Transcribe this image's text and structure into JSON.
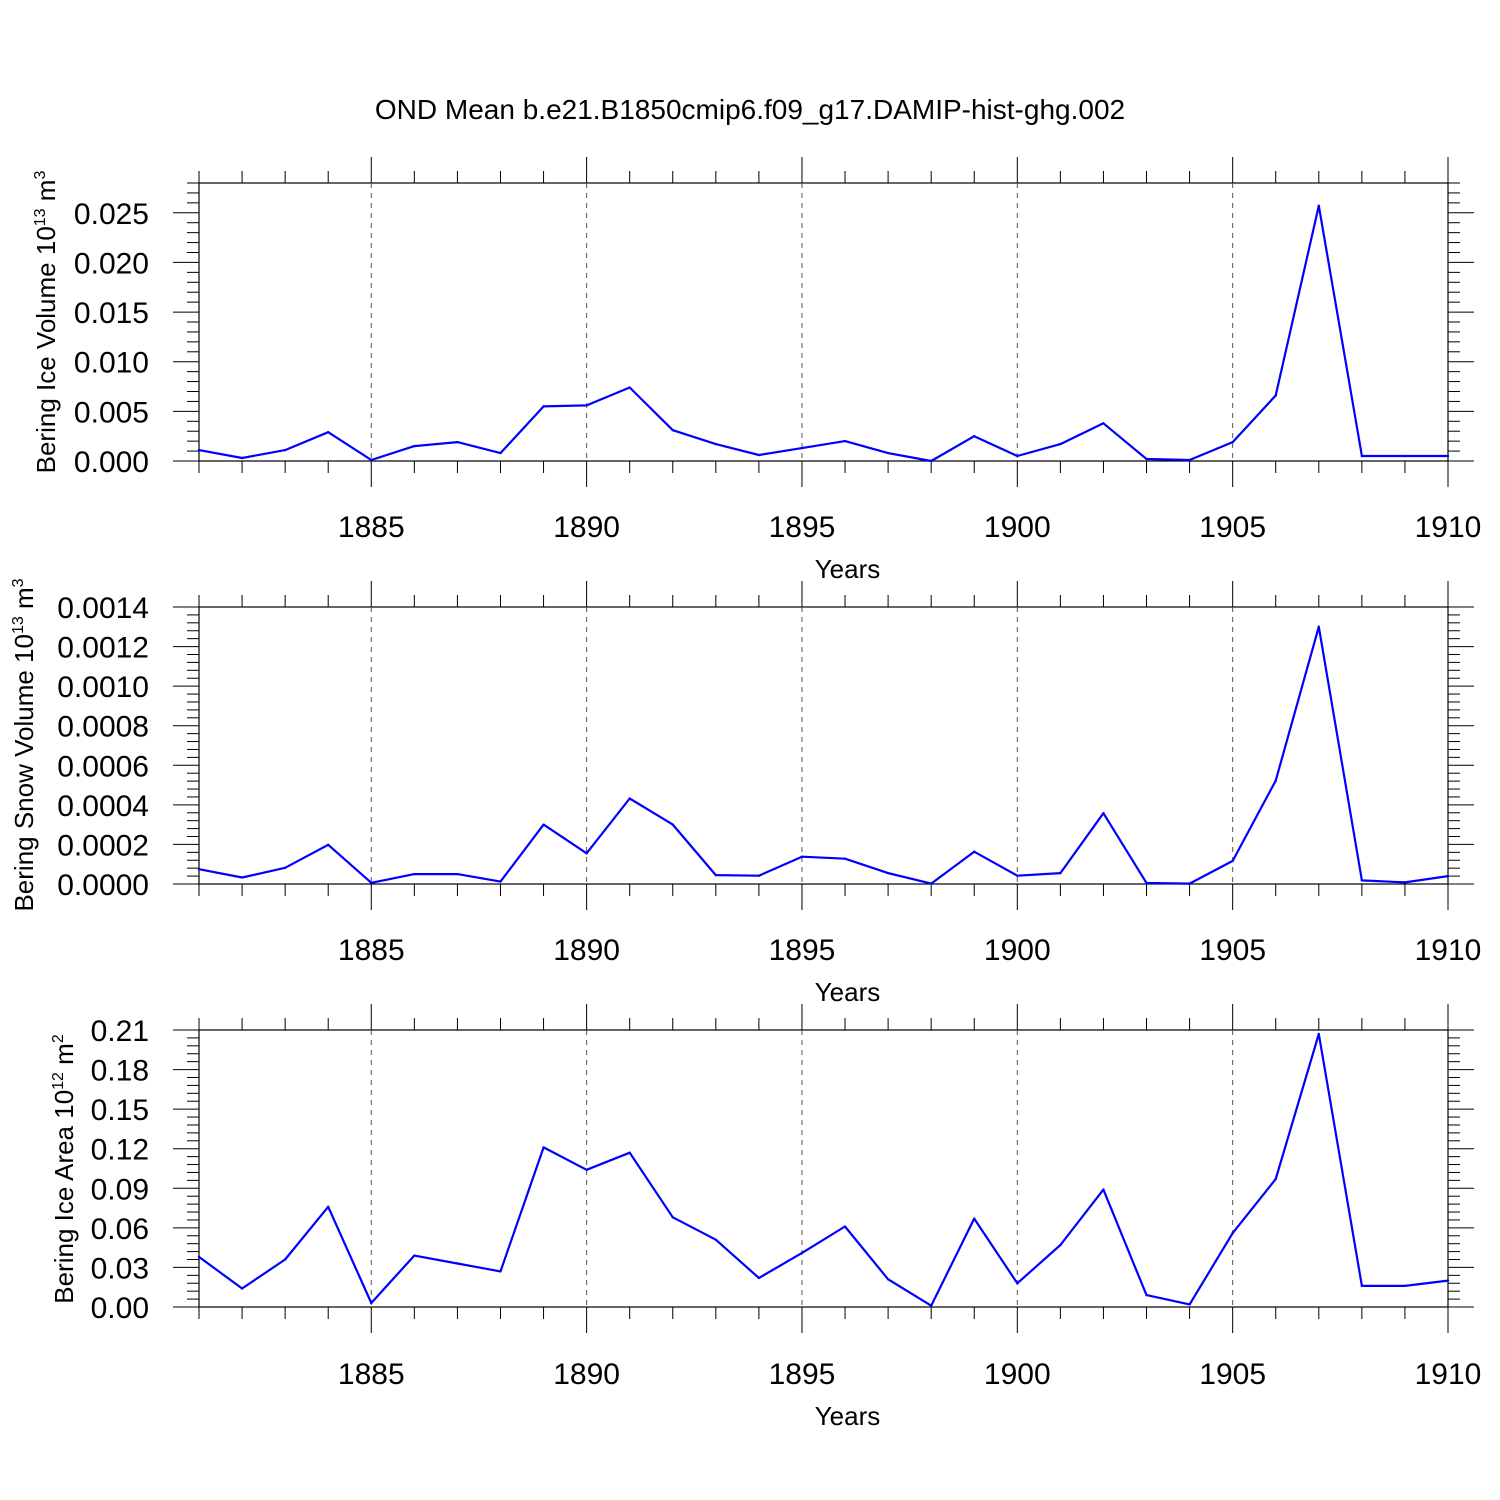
{
  "title": "OND Mean b.e21.B1850cmip6.f09_g17.DAMIP-hist-ghg.002",
  "line_color": "#0000ff",
  "chart_data": [
    {
      "type": "line",
      "ylabel": "Bering Ice Volume 10",
      "ylabel_exp": "13",
      "ylabel_unit": " m",
      "ylabel_unit_exp": "3",
      "xlabel": "Years",
      "xlim": [
        1881,
        1910
      ],
      "ylim": [
        0,
        0.028
      ],
      "xticks": [
        "1885",
        "1890",
        "1895",
        "1900",
        "1905",
        "1910"
      ],
      "yticks": [
        "0.000",
        "0.005",
        "0.010",
        "0.015",
        "0.020",
        "0.025"
      ],
      "x": [
        1881,
        1882,
        1883,
        1884,
        1885,
        1886,
        1887,
        1888,
        1889,
        1890,
        1891,
        1892,
        1893,
        1894,
        1895,
        1896,
        1897,
        1898,
        1899,
        1900,
        1901,
        1902,
        1903,
        1904,
        1905,
        1906,
        1907,
        1908,
        1909,
        1910
      ],
      "values": [
        0.0011,
        0.0003,
        0.0011,
        0.0029,
        0.0001,
        0.0015,
        0.0019,
        0.0008,
        0.0055,
        0.0056,
        0.0074,
        0.0031,
        0.0017,
        0.0006,
        0.0013,
        0.002,
        0.0008,
        0.0,
        0.0025,
        0.0005,
        0.0017,
        0.0038,
        0.0002,
        0.0001,
        0.0019,
        0.0066,
        0.0257,
        0.0005,
        0.0005,
        0.0005
      ]
    },
    {
      "type": "line",
      "ylabel": "Bering Snow Volume 10",
      "ylabel_exp": "13",
      "ylabel_unit": " m",
      "ylabel_unit_exp": "3",
      "xlabel": "Years",
      "xlim": [
        1881,
        1910
      ],
      "ylim": [
        0,
        0.0014
      ],
      "xticks": [
        "1885",
        "1890",
        "1895",
        "1900",
        "1905",
        "1910"
      ],
      "yticks": [
        "0.0000",
        "0.0002",
        "0.0004",
        "0.0006",
        "0.0008",
        "0.0010",
        "0.0012",
        "0.0014"
      ],
      "x": [
        1881,
        1882,
        1883,
        1884,
        1885,
        1886,
        1887,
        1888,
        1889,
        1890,
        1891,
        1892,
        1893,
        1894,
        1895,
        1896,
        1897,
        1898,
        1899,
        1900,
        1901,
        1902,
        1903,
        1904,
        1905,
        1906,
        1907,
        1908,
        1909,
        1910
      ],
      "values": [
        7.5e-05,
        3.3e-05,
        8.2e-05,
        0.000198,
        6e-06,
        5e-05,
        5e-05,
        1.2e-05,
        0.0003,
        0.000155,
        0.000432,
        0.0003,
        4.5e-05,
        4.2e-05,
        0.000138,
        0.000128,
        5.5e-05,
        2e-06,
        0.000163,
        4.2e-05,
        5.5e-05,
        0.000358,
        5e-06,
        2e-06,
        0.000117,
        0.000522,
        0.0013,
        1.8e-05,
        8e-06,
        4e-05
      ]
    },
    {
      "type": "line",
      "ylabel": "Bering Ice Area 10",
      "ylabel_exp": "12",
      "ylabel_unit": " m",
      "ylabel_unit_exp": "2",
      "xlabel": "Years",
      "xlim": [
        1881,
        1910
      ],
      "ylim": [
        0,
        0.21
      ],
      "xticks": [
        "1885",
        "1890",
        "1895",
        "1900",
        "1905",
        "1910"
      ],
      "yticks": [
        "0.00",
        "0.03",
        "0.06",
        "0.09",
        "0.12",
        "0.15",
        "0.18",
        "0.21"
      ],
      "x": [
        1881,
        1882,
        1883,
        1884,
        1885,
        1886,
        1887,
        1888,
        1889,
        1890,
        1891,
        1892,
        1893,
        1894,
        1895,
        1896,
        1897,
        1898,
        1899,
        1900,
        1901,
        1902,
        1903,
        1904,
        1905,
        1906,
        1907,
        1908,
        1909,
        1910
      ],
      "values": [
        0.038,
        0.014,
        0.036,
        0.076,
        0.003,
        0.039,
        0.033,
        0.027,
        0.121,
        0.104,
        0.117,
        0.068,
        0.051,
        0.022,
        0.041,
        0.061,
        0.021,
        0.001,
        0.067,
        0.018,
        0.047,
        0.089,
        0.009,
        0.002,
        0.056,
        0.097,
        0.207,
        0.016,
        0.016,
        0.02
      ]
    }
  ]
}
